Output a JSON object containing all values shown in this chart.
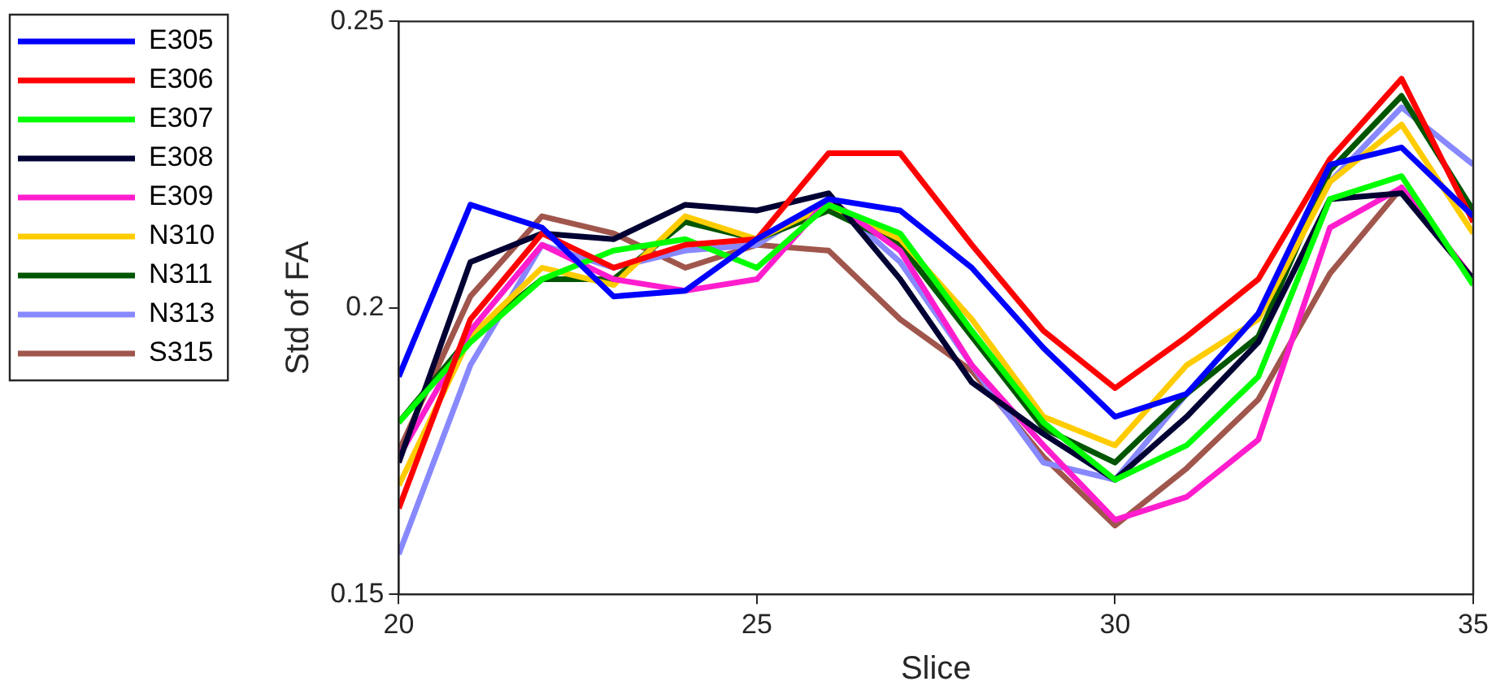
{
  "chart_data": {
    "type": "line",
    "xlabel": "Slice",
    "ylabel": "Std of FA",
    "x": [
      20,
      21,
      22,
      23,
      24,
      25,
      26,
      27,
      28,
      29,
      30,
      31,
      32,
      33,
      34,
      35
    ],
    "xlim": [
      20,
      35
    ],
    "xticks": [
      20,
      25,
      30,
      35
    ],
    "ylim": [
      0.15,
      0.25
    ],
    "yticks": [
      0.15,
      0.2,
      0.25
    ],
    "grid": false,
    "legend": "left",
    "marker": "none",
    "line_style": "solid",
    "series": [
      {
        "name": "E305",
        "color": "#0000ff",
        "values": [
          0.188,
          0.218,
          0.214,
          0.202,
          0.203,
          0.212,
          0.219,
          0.217,
          0.207,
          0.193,
          0.181,
          0.185,
          0.199,
          0.225,
          0.228,
          0.216
        ]
      },
      {
        "name": "E306",
        "color": "#ff0000",
        "values": [
          0.165,
          0.198,
          0.213,
          0.207,
          0.211,
          0.212,
          0.227,
          0.227,
          0.211,
          0.196,
          0.186,
          0.195,
          0.205,
          0.226,
          0.24,
          0.215
        ]
      },
      {
        "name": "E307",
        "color": "#00ff00",
        "values": [
          0.18,
          0.194,
          0.205,
          0.21,
          0.212,
          0.207,
          0.218,
          0.213,
          0.196,
          0.18,
          0.17,
          0.176,
          0.188,
          0.219,
          0.223,
          0.204
        ]
      },
      {
        "name": "E308",
        "color": "#000033",
        "values": [
          0.173,
          0.208,
          0.213,
          0.212,
          0.218,
          0.217,
          0.22,
          0.205,
          0.187,
          0.178,
          0.17,
          0.181,
          0.194,
          0.219,
          0.22,
          0.205
        ]
      },
      {
        "name": "E309",
        "color": "#ff1dce",
        "values": [
          0.174,
          0.196,
          0.211,
          0.205,
          0.203,
          0.205,
          0.219,
          0.21,
          0.19,
          0.176,
          0.163,
          0.167,
          0.177,
          0.214,
          0.221,
          0.205
        ]
      },
      {
        "name": "N310",
        "color": "#ffcc00",
        "values": [
          0.169,
          0.195,
          0.207,
          0.204,
          0.216,
          0.212,
          0.218,
          0.212,
          0.198,
          0.181,
          0.176,
          0.19,
          0.198,
          0.222,
          0.232,
          0.213
        ]
      },
      {
        "name": "N311",
        "color": "#005500",
        "values": [
          0.18,
          0.195,
          0.205,
          0.205,
          0.215,
          0.212,
          0.217,
          0.211,
          0.195,
          0.179,
          0.173,
          0.185,
          0.195,
          0.224,
          0.237,
          0.217
        ]
      },
      {
        "name": "N313",
        "color": "#8888ff",
        "values": [
          0.157,
          0.19,
          0.211,
          0.207,
          0.21,
          0.211,
          0.219,
          0.208,
          0.19,
          0.173,
          0.17,
          0.185,
          0.199,
          0.222,
          0.235,
          0.225
        ]
      },
      {
        "name": "S315",
        "color": "#a0564c",
        "values": [
          0.175,
          0.202,
          0.216,
          0.213,
          0.207,
          0.211,
          0.21,
          0.198,
          0.189,
          0.174,
          0.162,
          0.172,
          0.184,
          0.206,
          0.221,
          0.205
        ]
      }
    ]
  }
}
